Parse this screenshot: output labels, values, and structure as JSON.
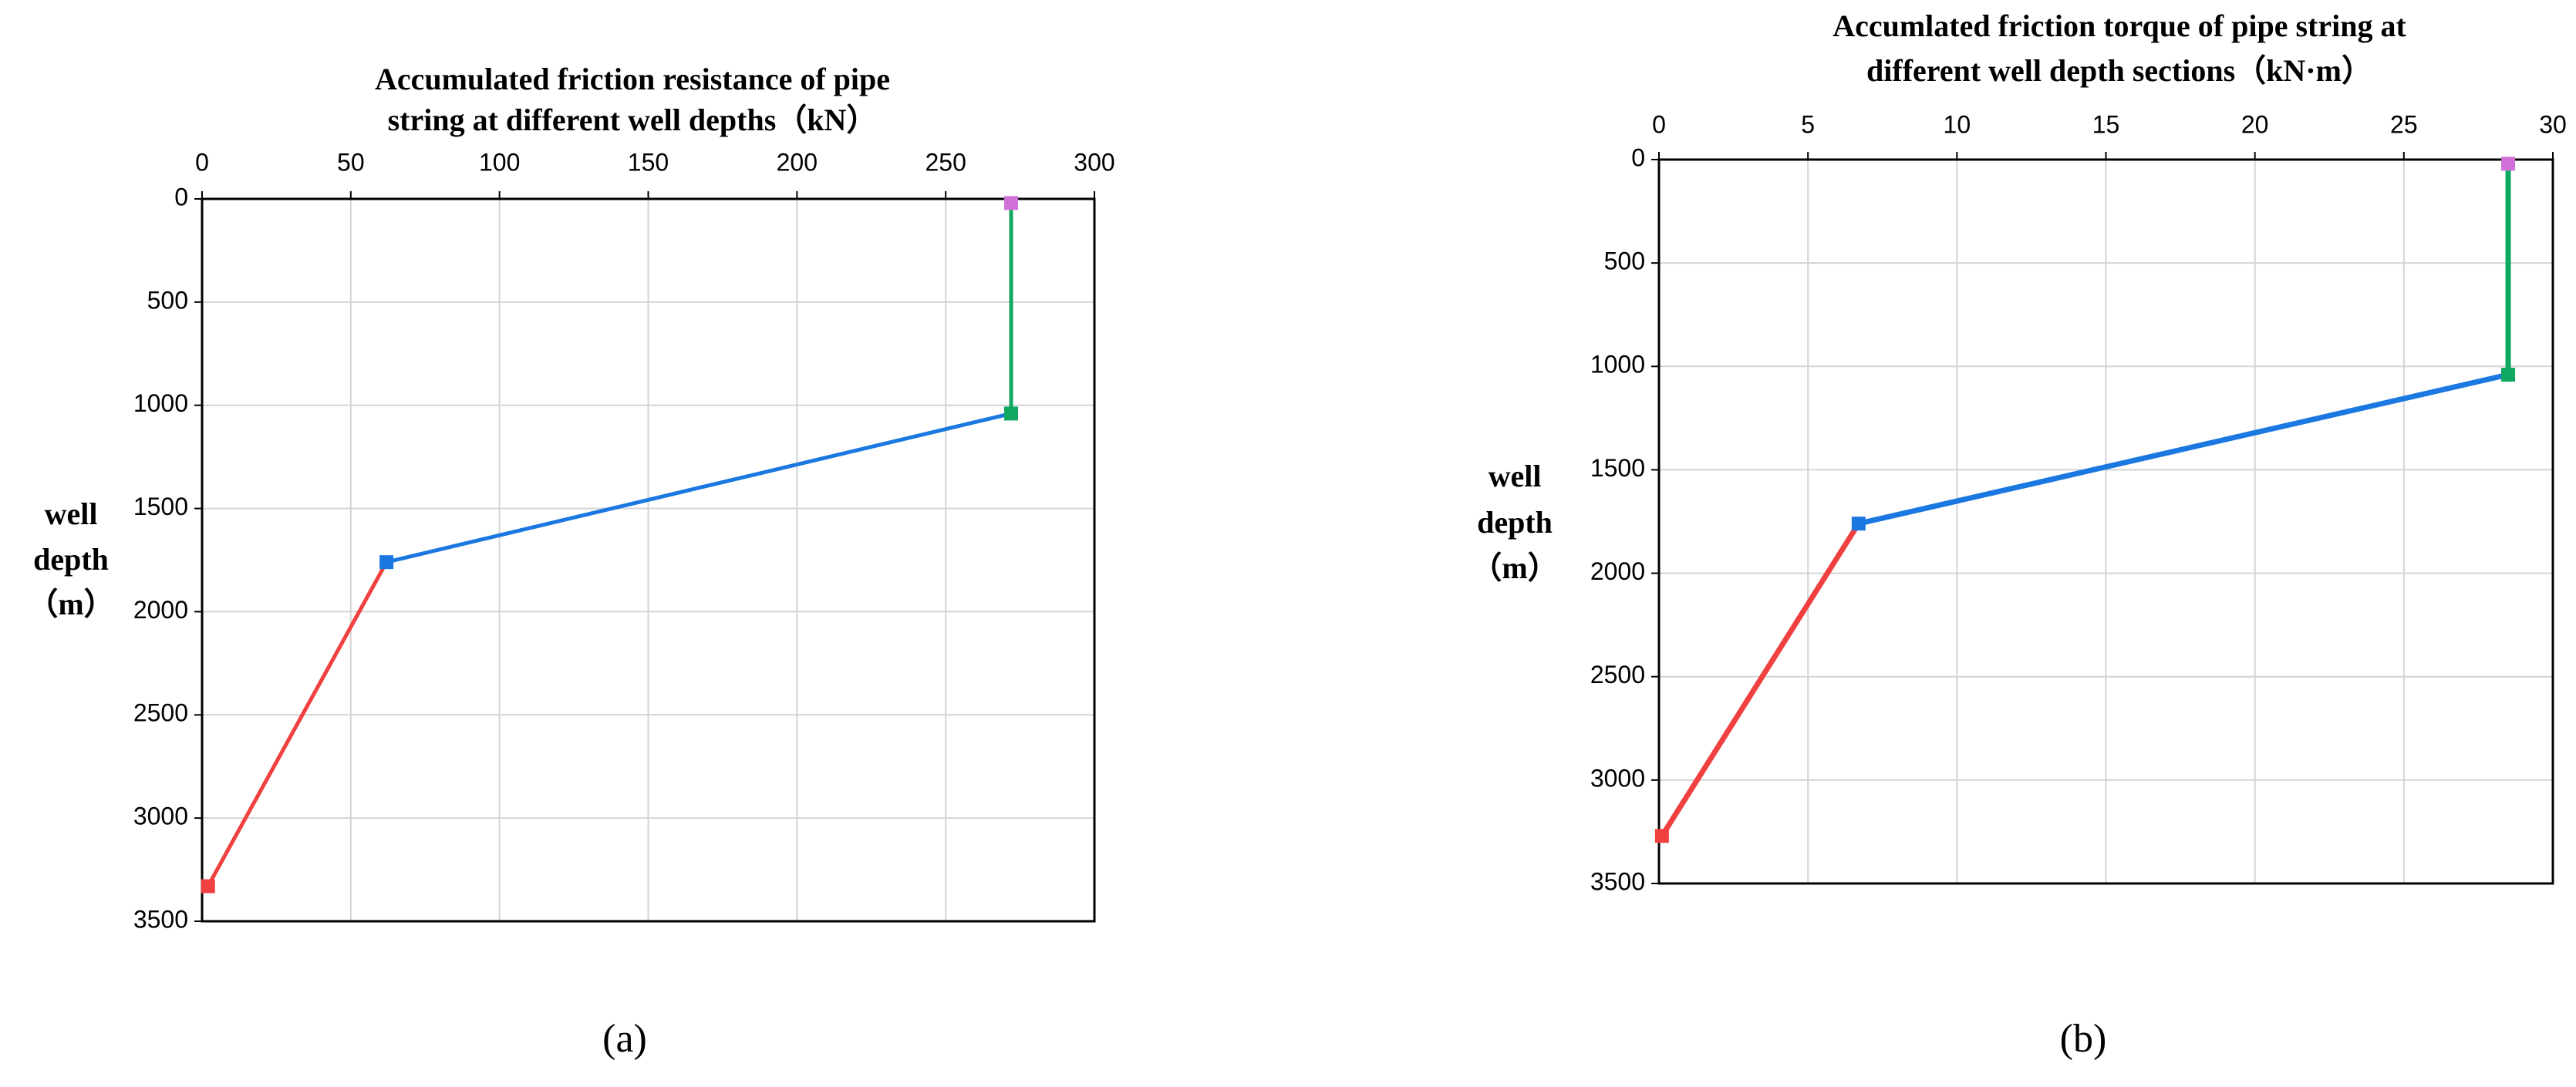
{
  "chart_data": [
    {
      "type": "line",
      "title": [
        "Accumulated friction resistance of pipe",
        "string at different well depths（kN）"
      ],
      "ylabel": [
        "well",
        "depth",
        "（m）"
      ],
      "caption": "(a)",
      "xlim": [
        0,
        300
      ],
      "xticks": [
        0,
        50,
        100,
        150,
        200,
        250,
        300
      ],
      "ylim": [
        0,
        3500
      ],
      "yticks": [
        0,
        500,
        1000,
        1500,
        2000,
        2500,
        3000,
        3500
      ],
      "y_inverted": true,
      "x_axis_position": "top",
      "grid": true,
      "series": [
        {
          "color": "#f04040",
          "x": [
            2,
            62
          ],
          "values": [
            3330,
            1760
          ]
        },
        {
          "color": "#1a78e0",
          "x": [
            62,
            272
          ],
          "values": [
            1760,
            1040
          ]
        },
        {
          "color": "#10a860",
          "x": [
            272,
            272
          ],
          "values": [
            1040,
            20
          ]
        },
        {
          "color": "#d070d8",
          "x": [
            272
          ],
          "values": [
            20
          ]
        }
      ]
    },
    {
      "type": "line",
      "title": [
        "Accumlated friction torque of pipe string at",
        "different well depth sections（kN·m）"
      ],
      "ylabel": [
        "well",
        "depth",
        "（m）"
      ],
      "caption": "(b)",
      "xlim": [
        0,
        30
      ],
      "xticks": [
        0,
        5,
        10,
        15,
        20,
        25,
        30
      ],
      "ylim": [
        0,
        3500
      ],
      "yticks": [
        0,
        500,
        1000,
        1500,
        2000,
        2500,
        3000,
        3500
      ],
      "y_inverted": true,
      "x_axis_position": "top",
      "grid": true,
      "series": [
        {
          "color": "#f04040",
          "x": [
            0.1,
            6.7
          ],
          "values": [
            3270,
            1760
          ]
        },
        {
          "color": "#1a78e0",
          "x": [
            6.7,
            28.5
          ],
          "values": [
            1760,
            1040
          ]
        },
        {
          "color": "#10a860",
          "x": [
            28.5,
            28.5
          ],
          "values": [
            1040,
            20
          ]
        },
        {
          "color": "#d070d8",
          "x": [
            28.5
          ],
          "values": [
            20
          ]
        }
      ]
    }
  ]
}
